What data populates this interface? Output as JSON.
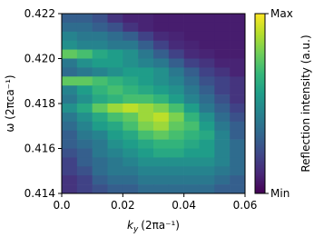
{
  "chart_data": {
    "type": "heatmap",
    "colormap": "viridis",
    "xlabel": {
      "symbol": "k",
      "subscript": "y",
      "unit": "(2πa⁻¹)"
    },
    "ylabel": "ω (2πca⁻¹)",
    "colorbar_label": "Reflection intensity (a.u.)",
    "x": [
      0.0025,
      0.0075,
      0.0125,
      0.0175,
      0.0225,
      0.0275,
      0.0325,
      0.0375,
      0.0425,
      0.0475,
      0.0525,
      0.0575
    ],
    "y": [
      0.4218,
      0.4214,
      0.421,
      0.4206,
      0.4202,
      0.4198,
      0.4194,
      0.419,
      0.4186,
      0.4182,
      0.4178,
      0.4174,
      0.417,
      0.4166,
      0.4162,
      0.4158,
      0.4154,
      0.415,
      0.4146,
      0.4142
    ],
    "z": [
      [
        0.3,
        0.3,
        0.25,
        0.15,
        0.1,
        0.1,
        0.08,
        0.08,
        0.08,
        0.08,
        0.08,
        0.08
      ],
      [
        0.35,
        0.35,
        0.3,
        0.25,
        0.15,
        0.1,
        0.08,
        0.08,
        0.08,
        0.08,
        0.08,
        0.08
      ],
      [
        0.45,
        0.4,
        0.4,
        0.35,
        0.3,
        0.2,
        0.12,
        0.1,
        0.08,
        0.08,
        0.08,
        0.08
      ],
      [
        0.5,
        0.45,
        0.45,
        0.4,
        0.4,
        0.3,
        0.2,
        0.12,
        0.1,
        0.08,
        0.08,
        0.08
      ],
      [
        0.75,
        0.7,
        0.6,
        0.55,
        0.5,
        0.4,
        0.3,
        0.2,
        0.12,
        0.1,
        0.08,
        0.08
      ],
      [
        0.4,
        0.5,
        0.55,
        0.55,
        0.5,
        0.45,
        0.4,
        0.3,
        0.2,
        0.15,
        0.1,
        0.1
      ],
      [
        0.35,
        0.4,
        0.45,
        0.5,
        0.55,
        0.55,
        0.5,
        0.4,
        0.3,
        0.2,
        0.15,
        0.1
      ],
      [
        0.75,
        0.75,
        0.7,
        0.65,
        0.6,
        0.55,
        0.5,
        0.45,
        0.35,
        0.25,
        0.2,
        0.15
      ],
      [
        0.45,
        0.55,
        0.65,
        0.7,
        0.65,
        0.6,
        0.55,
        0.5,
        0.4,
        0.3,
        0.2,
        0.15
      ],
      [
        0.4,
        0.5,
        0.6,
        0.65,
        0.7,
        0.7,
        0.65,
        0.55,
        0.45,
        0.35,
        0.25,
        0.15
      ],
      [
        0.5,
        0.6,
        0.75,
        0.85,
        0.9,
        0.85,
        0.8,
        0.7,
        0.55,
        0.4,
        0.3,
        0.2
      ],
      [
        0.4,
        0.5,
        0.6,
        0.7,
        0.75,
        0.85,
        0.9,
        0.8,
        0.65,
        0.5,
        0.35,
        0.25
      ],
      [
        0.35,
        0.45,
        0.55,
        0.6,
        0.7,
        0.8,
        0.85,
        0.75,
        0.7,
        0.55,
        0.4,
        0.3
      ],
      [
        0.3,
        0.4,
        0.45,
        0.55,
        0.6,
        0.7,
        0.75,
        0.7,
        0.65,
        0.6,
        0.45,
        0.3
      ],
      [
        0.3,
        0.35,
        0.4,
        0.5,
        0.55,
        0.6,
        0.65,
        0.65,
        0.6,
        0.55,
        0.45,
        0.35
      ],
      [
        0.25,
        0.3,
        0.4,
        0.45,
        0.5,
        0.55,
        0.6,
        0.6,
        0.55,
        0.55,
        0.45,
        0.35
      ],
      [
        0.2,
        0.3,
        0.35,
        0.4,
        0.45,
        0.5,
        0.5,
        0.5,
        0.5,
        0.5,
        0.45,
        0.35
      ],
      [
        0.2,
        0.25,
        0.35,
        0.4,
        0.4,
        0.45,
        0.45,
        0.45,
        0.45,
        0.45,
        0.4,
        0.35
      ],
      [
        0.15,
        0.2,
        0.3,
        0.35,
        0.35,
        0.4,
        0.4,
        0.4,
        0.4,
        0.4,
        0.35,
        0.3
      ],
      [
        0.15,
        0.2,
        0.25,
        0.3,
        0.3,
        0.35,
        0.35,
        0.35,
        0.35,
        0.35,
        0.3,
        0.3
      ]
    ],
    "xlim": [
      0,
      0.06
    ],
    "ylim": [
      0.414,
      0.422
    ],
    "zlim": [
      0,
      1
    ],
    "xticks": [
      {
        "value": 0,
        "label": "0.0"
      },
      0.02,
      0.04,
      0.06
    ],
    "yticks": [
      0.414,
      0.416,
      0.418,
      {
        "value": 0.42,
        "label": "0.420"
      },
      0.422
    ],
    "colorbar_ticks": [
      {
        "value": 0,
        "label": "Min"
      },
      {
        "value": 1,
        "label": "Max"
      }
    ]
  }
}
